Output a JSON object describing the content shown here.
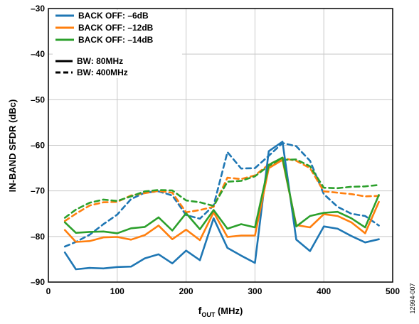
{
  "chart_data": {
    "type": "line",
    "xlabel_main": "f",
    "xlabel_sub": "OUT",
    "xlabel_unit": " (MHz)",
    "ylabel": "IN-BAND SFDR (dBc)",
    "xlim": [
      0,
      500
    ],
    "ylim": [
      -90,
      -30
    ],
    "x_ticks": [
      "0",
      "100",
      "200",
      "300",
      "400",
      "500"
    ],
    "y_ticks": [
      "–90",
      "–80",
      "–70",
      "–60",
      "–50",
      "–40",
      "–30"
    ],
    "x_tick_values": [
      0,
      100,
      200,
      300,
      400,
      500
    ],
    "y_tick_values": [
      -90,
      -80,
      -70,
      -60,
      -50,
      -40,
      -30
    ],
    "grid": true,
    "legend_position": "top-left",
    "legend": {
      "backoff": [
        {
          "label": "BACK OFF: –6dB",
          "color": "#1f77b4"
        },
        {
          "label": "BACK OFF: –12dB",
          "color": "#ff7f0e"
        },
        {
          "label": "BACK OFF: –14dB",
          "color": "#2ca02c"
        }
      ],
      "bandwidth": [
        {
          "label": "BW: 80MHz",
          "style": "solid"
        },
        {
          "label": "BW: 400MHz",
          "style": "dashed"
        }
      ]
    },
    "figure_id": "12994-007",
    "series": [
      {
        "backoff": "BACK OFF: –6dB",
        "bw": "BW: 80MHz",
        "color": "#1f77b4",
        "dashed": false,
        "x": [
          24,
          40,
          60,
          80,
          100,
          120,
          140,
          160,
          180,
          200,
          220,
          240,
          260,
          280,
          300,
          320,
          340,
          360,
          380,
          400,
          420,
          440,
          460,
          480
        ],
        "y": [
          -83.5,
          -87.2,
          -86.9,
          -87.0,
          -86.7,
          -86.6,
          -84.8,
          -83.9,
          -85.9,
          -83.1,
          -85.2,
          -76.0,
          -82.5,
          -84.2,
          -85.8,
          -61.3,
          -59.2,
          -80.7,
          -83.2,
          -77.8,
          -78.3,
          -79.9,
          -81.3,
          -80.6
        ]
      },
      {
        "backoff": "BACK OFF: –12dB",
        "bw": "BW: 80MHz",
        "color": "#ff7f0e",
        "dashed": false,
        "x": [
          24,
          40,
          60,
          80,
          100,
          120,
          140,
          160,
          180,
          200,
          220,
          240,
          260,
          280,
          300,
          320,
          340,
          360,
          380,
          400,
          420,
          440,
          460,
          480
        ],
        "y": [
          -78.6,
          -81.2,
          -81.0,
          -80.2,
          -80.1,
          -80.7,
          -79.7,
          -77.6,
          -80.6,
          -78.5,
          -80.8,
          -74.7,
          -80.1,
          -79.8,
          -79.8,
          -65.0,
          -63.2,
          -77.5,
          -78.0,
          -75.1,
          -75.5,
          -76.9,
          -79.3,
          -72.4
        ]
      },
      {
        "backoff": "BACK OFF: –14dB",
        "bw": "BW: 80MHz",
        "color": "#2ca02c",
        "dashed": false,
        "x": [
          24,
          40,
          60,
          80,
          100,
          120,
          140,
          160,
          180,
          200,
          220,
          240,
          260,
          280,
          300,
          320,
          340,
          360,
          380,
          400,
          420,
          440,
          460,
          480
        ],
        "y": [
          -76.9,
          -79.2,
          -79.0,
          -78.9,
          -79.3,
          -78.2,
          -77.9,
          -75.8,
          -78.7,
          -74.9,
          -78.4,
          -74.2,
          -78.3,
          -77.3,
          -78.0,
          -64.3,
          -62.7,
          -77.8,
          -75.5,
          -74.8,
          -74.6,
          -76.0,
          -78.0,
          -70.9
        ]
      },
      {
        "backoff": "BACK OFF: –6dB",
        "bw": "BW: 400MHz",
        "color": "#1f77b4",
        "dashed": true,
        "x": [
          24,
          40,
          60,
          80,
          100,
          120,
          140,
          160,
          180,
          200,
          220,
          240,
          260,
          280,
          300,
          320,
          340,
          360,
          380,
          400,
          420,
          440,
          460,
          480
        ],
        "y": [
          -82.2,
          -81.2,
          -79.6,
          -77.3,
          -75.2,
          -71.8,
          -70.4,
          -70.1,
          -71.0,
          -75.3,
          -76.1,
          -73.2,
          -61.5,
          -65.1,
          -65.0,
          -62.3,
          -59.5,
          -60.2,
          -63.4,
          -70.7,
          -73.5,
          -75.0,
          -75.5,
          -77.6
        ]
      },
      {
        "backoff": "BACK OFF: –12dB",
        "bw": "BW: 400MHz",
        "color": "#ff7f0e",
        "dashed": true,
        "x": [
          24,
          40,
          60,
          80,
          100,
          120,
          140,
          160,
          180,
          200,
          220,
          240,
          260,
          280,
          300,
          320,
          340,
          360,
          380,
          400,
          420,
          440,
          460,
          480
        ],
        "y": [
          -76.6,
          -75.0,
          -73.2,
          -72.5,
          -72.4,
          -71.0,
          -70.5,
          -70.0,
          -70.4,
          -74.7,
          -74.2,
          -73.5,
          -67.1,
          -67.4,
          -66.6,
          -64.2,
          -62.8,
          -63.4,
          -65.0,
          -70.1,
          -70.4,
          -70.7,
          -71.2,
          -71.1
        ]
      },
      {
        "backoff": "BACK OFF: –14dB",
        "bw": "BW: 400MHz",
        "color": "#2ca02c",
        "dashed": true,
        "x": [
          24,
          40,
          60,
          80,
          100,
          120,
          140,
          160,
          180,
          200,
          220,
          240,
          260,
          280,
          300,
          320,
          340,
          360,
          380,
          400,
          420,
          440,
          460,
          480
        ],
        "y": [
          -75.9,
          -74.1,
          -72.6,
          -71.9,
          -72.2,
          -71.2,
          -70.1,
          -69.8,
          -69.9,
          -72.1,
          -72.5,
          -73.3,
          -68.0,
          -67.8,
          -66.8,
          -64.5,
          -63.2,
          -63.1,
          -64.6,
          -69.3,
          -69.4,
          -69.1,
          -69.0,
          -68.7
        ]
      }
    ]
  }
}
